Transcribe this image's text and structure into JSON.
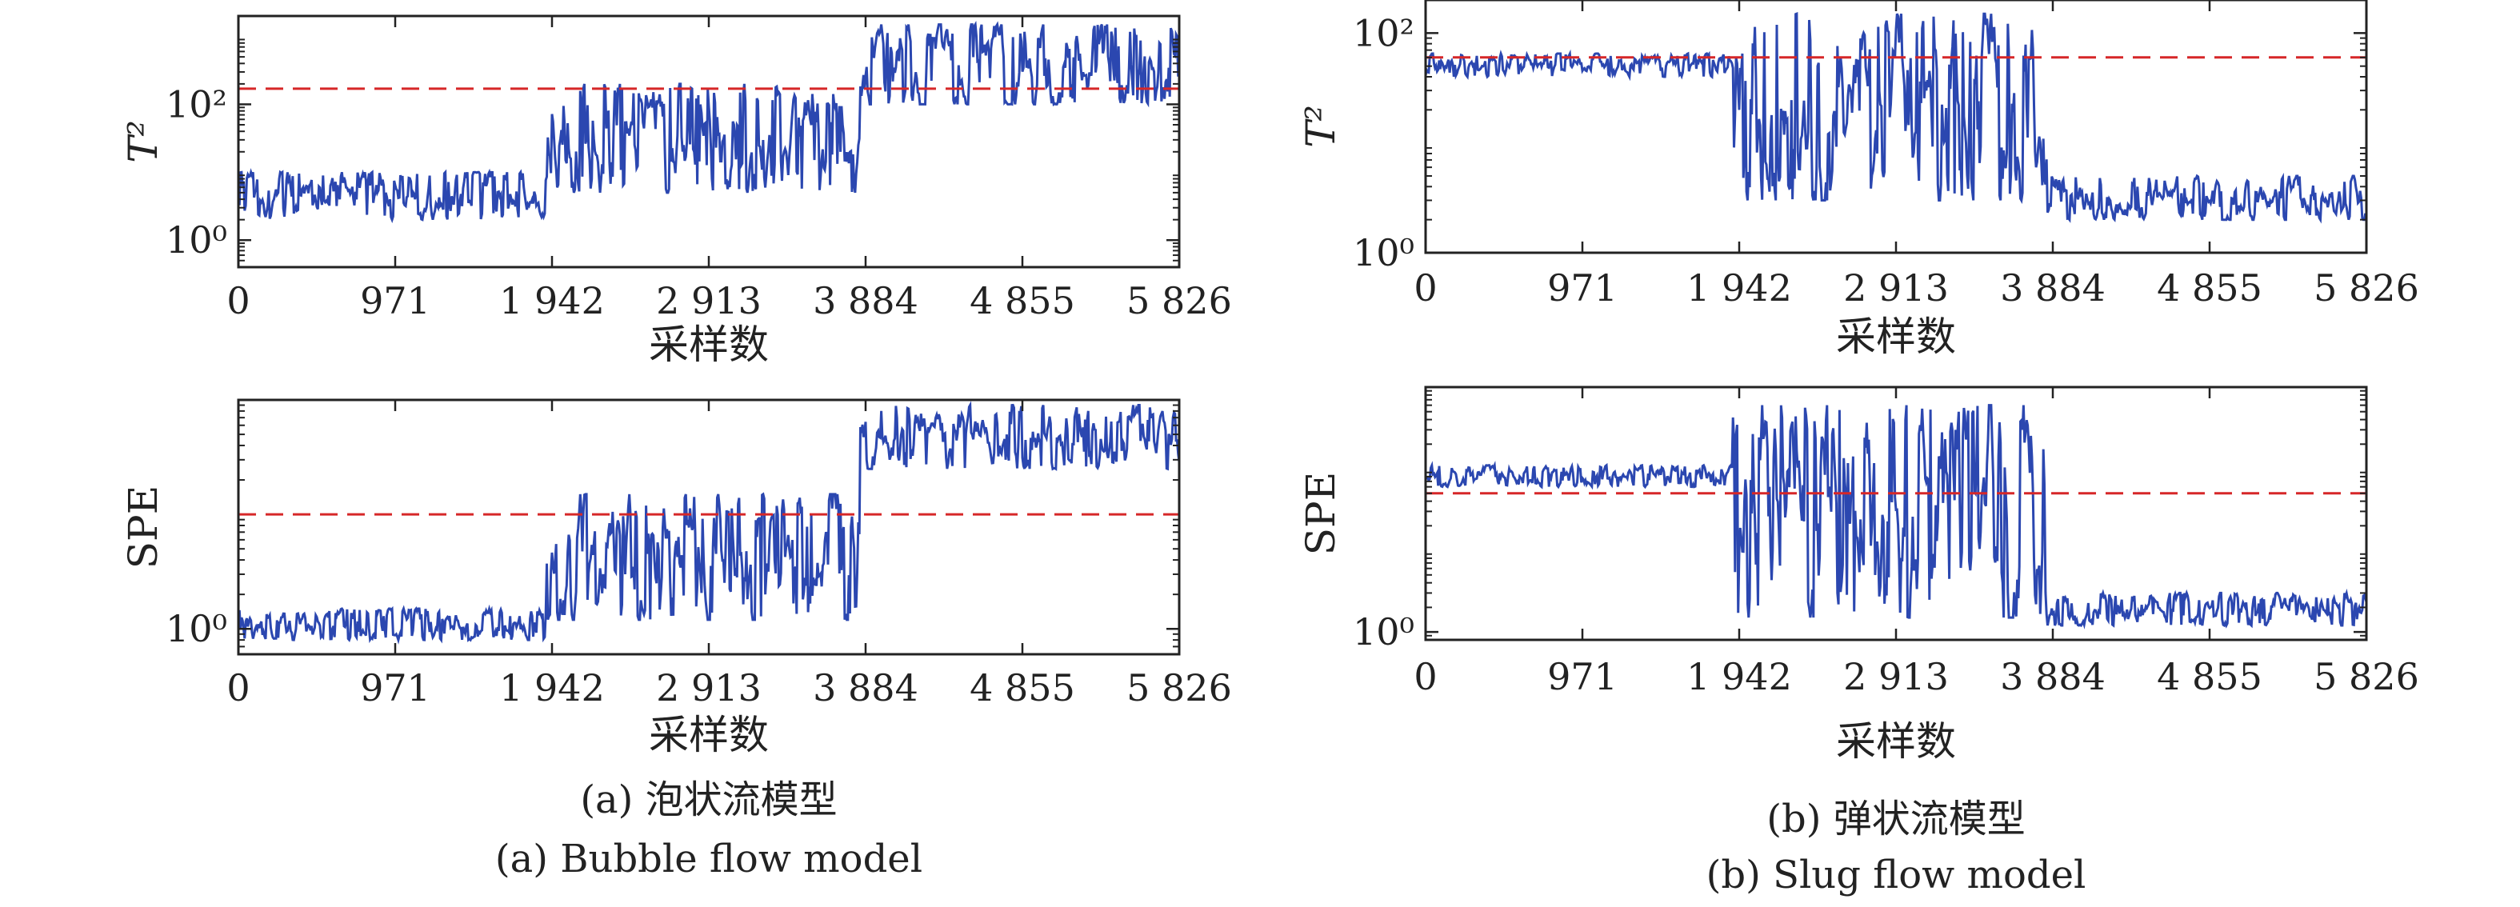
{
  "colors": {
    "series": "#2b47b0",
    "threshold": "#d62728",
    "axis": "#222222"
  },
  "chart_data": [
    {
      "type": "line",
      "ylabel": "T²",
      "y_ticks": [
        "10⁰",
        "10²"
      ],
      "xlabel": "采样数",
      "x_ticks": [
        "0",
        "971",
        "1 942",
        "2 913",
        "3 884",
        "4 855",
        "5 826"
      ],
      "xlim": [
        0,
        5826
      ],
      "yscale": "log",
      "ylim": [
        0.4,
        2000
      ],
      "threshold": 170,
      "series": [
        {
          "segments": [
            {
              "x": [
                0,
                1900
              ],
              "lo": 2,
              "hi": 10
            },
            {
              "x": [
                1900,
                3850
              ],
              "lo": 5,
              "hi": 200
            },
            {
              "x": [
                3850,
                5826
              ],
              "lo": 100,
              "hi": 1500
            }
          ]
        }
      ]
    },
    {
      "type": "line",
      "ylabel": "SPE",
      "y_ticks": [
        "10⁰"
      ],
      "xlabel": "采样数",
      "x_ticks": [
        "0",
        "971",
        "1 942",
        "2 913",
        "3 884",
        "4 855",
        "5 826"
      ],
      "xlim": [
        0,
        5826
      ],
      "yscale": "log",
      "ylim": [
        0.6,
        100
      ],
      "threshold": 10,
      "series": [
        {
          "segments": [
            {
              "x": [
                0,
                1900
              ],
              "lo": 0.8,
              "hi": 1.5
            },
            {
              "x": [
                1900,
                3850
              ],
              "lo": 1.2,
              "hi": 15
            },
            {
              "x": [
                3850,
                5826
              ],
              "lo": 25,
              "hi": 90
            }
          ]
        }
      ]
    },
    {
      "type": "line",
      "ylabel": "T²",
      "y_ticks": [
        "10⁰",
        "10²"
      ],
      "xlabel": "采样数",
      "x_ticks": [
        "0",
        "971",
        "1 942",
        "2 913",
        "3 884",
        "4 855",
        "5 826"
      ],
      "xlim": [
        0,
        5826
      ],
      "yscale": "log",
      "ylim": [
        1,
        200
      ],
      "threshold": 60,
      "series": [
        {
          "segments": [
            {
              "x": [
                0,
                1900
              ],
              "lo": 40,
              "hi": 65
            },
            {
              "x": [
                1900,
                3850
              ],
              "lo": 3,
              "hi": 150
            },
            {
              "x": [
                3850,
                5826
              ],
              "lo": 2,
              "hi": 5
            }
          ]
        }
      ]
    },
    {
      "type": "line",
      "ylabel": "SPE",
      "y_ticks": [
        "10⁰"
      ],
      "xlabel": "采样数",
      "x_ticks": [
        "0",
        "971",
        "1 942",
        "2 913",
        "3 884",
        "4 855",
        "5 826"
      ],
      "xlim": [
        0,
        5826
      ],
      "yscale": "log",
      "ylim": [
        0.8,
        1000
      ],
      "threshold": 50,
      "series": [
        {
          "segments": [
            {
              "x": [
                0,
                1900
              ],
              "lo": 60,
              "hi": 110
            },
            {
              "x": [
                1900,
                3850
              ],
              "lo": 1.5,
              "hi": 600
            },
            {
              "x": [
                3850,
                5826
              ],
              "lo": 1.2,
              "hi": 3
            }
          ]
        }
      ]
    }
  ],
  "captions": {
    "a_zh": "(a) 泡状流模型",
    "a_en": "(a) Bubble flow model",
    "b_zh": "(b) 弹状流模型",
    "b_en": "(b) Slug flow model"
  }
}
